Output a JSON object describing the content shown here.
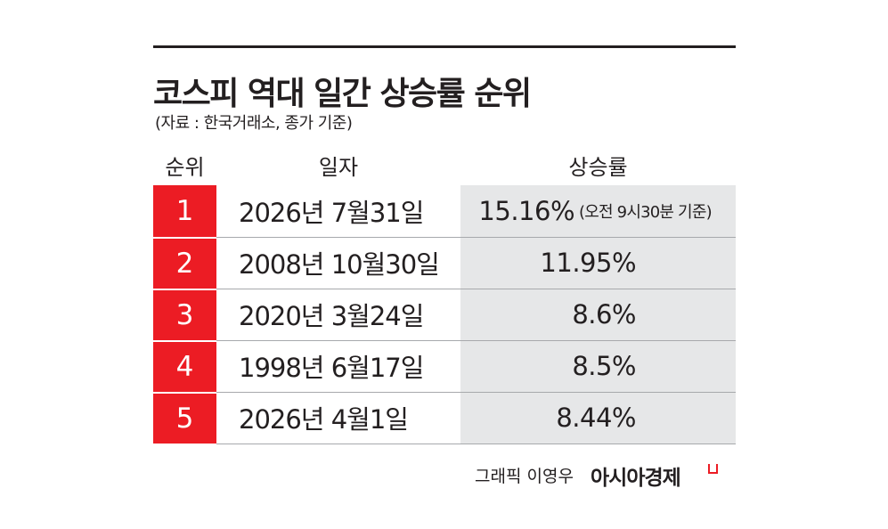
{
  "header": {
    "title": "코스피 역대 일간 상승률 순위",
    "source": "(자료 : 한국거래소, 종가 기준)"
  },
  "table": {
    "columns": [
      "순위",
      "일자",
      "상승률"
    ],
    "rows": [
      [
        "1",
        "2026년 7월31일",
        "15.16%",
        "(오전 9시30분 기준)"
      ],
      [
        "2",
        "2008년 10월30일",
        "11.95%"
      ],
      [
        "3",
        "2020년 3월24일",
        "8.6%"
      ],
      [
        "4",
        "1998년 6월17일",
        "8.5%"
      ],
      [
        "5",
        "2026년 4월1일",
        "8.44%"
      ]
    ]
  },
  "footer": {
    "credit": "그래픽 이영우",
    "brand": "아시아경제"
  }
}
